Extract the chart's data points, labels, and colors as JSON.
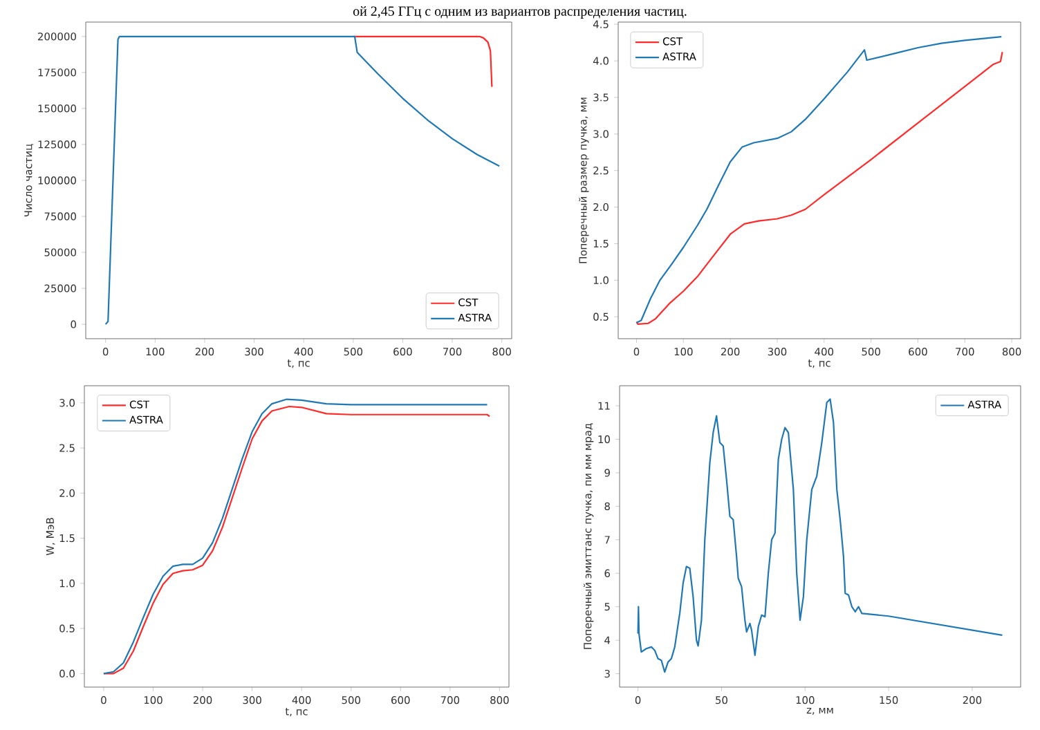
{
  "chart_data": [
    {
      "type": "line",
      "annotations": [
        "ой 2,45 ГГц с одним из вариантов распределения частиц."
      ],
      "xlabel": "t, пс",
      "ylabel": "Число частиц",
      "xlim": [
        -40,
        820
      ],
      "ylim": [
        -10000,
        210000
      ],
      "xticks": [
        0,
        100,
        200,
        300,
        400,
        500,
        600,
        700,
        800
      ],
      "yticks": [
        0,
        25000,
        50000,
        75000,
        100000,
        125000,
        150000,
        175000,
        200000
      ],
      "legend": "lower right",
      "series": [
        {
          "name": "CST",
          "color": "#ff2a2a",
          "x": [
            500,
            755,
            763,
            772,
            777,
            780
          ],
          "values": [
            200000,
            200000,
            199000,
            196000,
            190000,
            165000
          ]
        },
        {
          "name": "ASTRA",
          "color": "#1f77b4",
          "x": [
            0,
            5,
            25,
            28,
            503,
            508,
            550,
            600,
            650,
            700,
            750,
            795
          ],
          "values": [
            0,
            2000,
            198000,
            200000,
            200000,
            189000,
            174000,
            157000,
            142000,
            129000,
            118000,
            110000
          ]
        }
      ]
    },
    {
      "type": "line",
      "xlabel": "t, пс",
      "ylabel": "Поперечный размер пучка, мм",
      "xlim": [
        -39,
        819
      ],
      "ylim": [
        0.2,
        4.53
      ],
      "xticks": [
        0,
        100,
        200,
        300,
        400,
        500,
        600,
        700,
        800
      ],
      "yticks": [
        {
          "value": 0.5,
          "label": "0.5"
        },
        {
          "value": 1,
          "label": "1.0"
        },
        {
          "value": 1.5,
          "label": "1.5"
        },
        {
          "value": 2,
          "label": "2.0"
        },
        {
          "value": 2.5,
          "label": "2.5"
        },
        {
          "value": 3,
          "label": "3.0"
        },
        {
          "value": 3.5,
          "label": "3.5"
        },
        {
          "value": 4,
          "label": "4.0"
        },
        {
          "value": 4.5,
          "label": "4.5"
        }
      ],
      "legend": "upper left",
      "series": [
        {
          "name": "CST",
          "color": "#ff2a2a",
          "x": [
            0,
            3,
            25,
            40,
            70,
            100,
            130,
            160,
            200,
            230,
            260,
            300,
            330,
            360,
            400,
            500,
            600,
            700,
            760,
            776,
            780
          ],
          "values": [
            0.43,
            0.4,
            0.41,
            0.47,
            0.68,
            0.85,
            1.05,
            1.3,
            1.63,
            1.77,
            1.81,
            1.84,
            1.89,
            1.97,
            2.17,
            2.65,
            3.15,
            3.65,
            3.95,
            3.99,
            4.12
          ]
        },
        {
          "name": "ASTRA",
          "color": "#1f77b4",
          "x": [
            0,
            10,
            30,
            50,
            75,
            100,
            130,
            150,
            175,
            200,
            225,
            250,
            300,
            330,
            360,
            400,
            450,
            486,
            491,
            550,
            600,
            650,
            700,
            778
          ],
          "values": [
            0.42,
            0.45,
            0.75,
            1.0,
            1.22,
            1.45,
            1.75,
            1.97,
            2.3,
            2.62,
            2.82,
            2.88,
            2.94,
            3.03,
            3.2,
            3.48,
            3.85,
            4.15,
            4.01,
            4.1,
            4.18,
            4.24,
            4.28,
            4.33
          ]
        }
      ]
    },
    {
      "type": "line",
      "xlabel": "t, пс",
      "ylabel": "W, МэВ",
      "xlim": [
        -39,
        819
      ],
      "ylim": [
        -0.15,
        3.19
      ],
      "xticks": [
        0,
        100,
        200,
        300,
        400,
        500,
        600,
        700,
        800
      ],
      "yticks": [
        {
          "value": 0,
          "label": "0.0"
        },
        {
          "value": 0.5,
          "label": "0.5"
        },
        {
          "value": 1,
          "label": "1.0"
        },
        {
          "value": 1.5,
          "label": "1.5"
        },
        {
          "value": 2,
          "label": "2.0"
        },
        {
          "value": 2.5,
          "label": "2.5"
        },
        {
          "value": 3,
          "label": "3.0"
        }
      ],
      "legend": "upper left",
      "series": [
        {
          "name": "CST",
          "color": "#ff2a2a",
          "x": [
            0,
            20,
            40,
            60,
            80,
            100,
            120,
            140,
            160,
            180,
            200,
            220,
            240,
            260,
            280,
            300,
            320,
            340,
            375,
            400,
            450,
            500,
            775,
            780
          ],
          "values": [
            0,
            0.0,
            0.06,
            0.25,
            0.52,
            0.78,
            0.99,
            1.11,
            1.14,
            1.15,
            1.2,
            1.36,
            1.62,
            1.95,
            2.28,
            2.6,
            2.8,
            2.91,
            2.96,
            2.95,
            2.88,
            2.87,
            2.87,
            2.85
          ]
        },
        {
          "name": "ASTRA",
          "color": "#1f77b4",
          "x": [
            0,
            20,
            40,
            60,
            80,
            100,
            120,
            140,
            160,
            180,
            200,
            220,
            240,
            260,
            280,
            300,
            320,
            340,
            370,
            400,
            450,
            500,
            775
          ],
          "values": [
            0,
            0.02,
            0.12,
            0.35,
            0.62,
            0.88,
            1.08,
            1.19,
            1.21,
            1.21,
            1.28,
            1.45,
            1.72,
            2.05,
            2.38,
            2.68,
            2.88,
            2.99,
            3.04,
            3.03,
            2.99,
            2.98,
            2.98
          ]
        }
      ]
    },
    {
      "type": "line",
      "xlabel": "z, мм",
      "ylabel": "Поперечный эмиттанс пучка, пи мм мрад",
      "xlim": [
        -11,
        229
      ],
      "ylim": [
        2.6,
        11.6
      ],
      "xticks": [
        0,
        50,
        100,
        150,
        200
      ],
      "yticks": [
        3,
        4,
        5,
        6,
        7,
        8,
        9,
        10,
        11
      ],
      "legend": "upper right",
      "series": [
        {
          "name": "ASTRA",
          "color": "#1f77b4",
          "x": [
            0,
            0.3,
            0.6,
            2,
            5,
            8,
            10,
            12,
            14,
            16,
            18,
            20,
            22,
            25,
            27,
            29,
            31,
            33,
            35,
            36,
            38,
            40,
            43,
            45,
            47,
            49,
            51,
            53,
            55,
            57,
            59,
            60,
            62,
            64,
            65,
            67,
            68,
            70,
            72,
            74,
            76,
            78,
            80,
            82,
            84,
            86,
            88,
            90,
            93,
            95,
            97,
            99,
            101,
            104,
            107,
            110,
            113,
            115,
            117,
            119,
            121,
            123,
            124,
            126,
            128,
            130,
            132,
            134,
            150,
            218
          ],
          "values": [
            4.2,
            5.0,
            4.2,
            3.65,
            3.75,
            3.8,
            3.7,
            3.45,
            3.4,
            3.05,
            3.35,
            3.45,
            3.8,
            4.8,
            5.7,
            6.2,
            6.15,
            5.3,
            4.0,
            3.83,
            4.6,
            7.0,
            9.3,
            10.2,
            10.7,
            9.9,
            9.8,
            8.8,
            7.7,
            7.6,
            6.5,
            5.85,
            5.6,
            4.6,
            4.25,
            4.5,
            4.3,
            3.55,
            4.4,
            4.75,
            4.7,
            6.0,
            7.0,
            7.2,
            9.4,
            10.0,
            10.35,
            10.2,
            8.5,
            6.0,
            4.6,
            5.3,
            7.0,
            8.5,
            8.9,
            9.9,
            11.1,
            11.2,
            10.5,
            8.5,
            7.6,
            6.5,
            5.4,
            5.35,
            5.0,
            4.85,
            5.0,
            4.8,
            4.72,
            4.15
          ]
        }
      ]
    }
  ]
}
